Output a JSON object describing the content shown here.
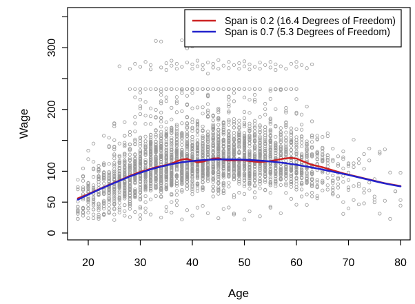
{
  "figure": {
    "background_color": "#ffffff",
    "axis_color": "#000000"
  },
  "chart_data": {
    "type": "scatter",
    "title": "",
    "xlabel": "Age",
    "ylabel": "Wage",
    "xlim": [
      16,
      82
    ],
    "ylim": [
      -12,
      365
    ],
    "grid": false,
    "x_ticks": [
      20,
      30,
      40,
      50,
      60,
      70,
      80
    ],
    "y_ticks": [
      0,
      50,
      100,
      150,
      200,
      250,
      300,
      350
    ],
    "y_tick_labels_shown": [
      "0",
      "50",
      "100",
      "200",
      "300"
    ],
    "legend": {
      "position": "topright",
      "entries": [
        {
          "label": "Span is 0.2  (16.4 Degrees of Freedom)",
          "color": "#CC2222"
        },
        {
          "label": "Span is 0.7  (5.3 Degrees of Freedom)",
          "color": "#2222CC"
        }
      ]
    },
    "series": [
      {
        "name": "loess span 0.2",
        "type": "line",
        "color": "#CC2222",
        "width": 2.5,
        "points": [
          [
            18,
            56
          ],
          [
            20,
            63
          ],
          [
            22,
            70.5
          ],
          [
            24,
            78
          ],
          [
            26,
            85
          ],
          [
            28,
            92.5
          ],
          [
            30,
            99
          ],
          [
            31,
            101.5
          ],
          [
            32,
            104
          ],
          [
            33,
            106.5
          ],
          [
            34,
            108.5
          ],
          [
            35,
            110
          ],
          [
            36,
            112.5
          ],
          [
            37,
            116
          ],
          [
            38,
            119
          ],
          [
            39,
            120
          ],
          [
            40,
            117
          ],
          [
            41,
            114.5
          ],
          [
            42,
            115.5
          ],
          [
            43,
            118
          ],
          [
            44,
            120.5
          ],
          [
            45,
            121
          ],
          [
            46,
            118.5
          ],
          [
            47,
            117.5
          ],
          [
            48,
            117.5
          ],
          [
            49,
            118
          ],
          [
            50,
            117.5
          ],
          [
            51,
            116.5
          ],
          [
            52,
            115.5
          ],
          [
            53,
            115
          ],
          [
            54,
            115.5
          ],
          [
            55,
            116.5
          ],
          [
            56,
            118
          ],
          [
            57,
            119.5
          ],
          [
            58,
            121
          ],
          [
            59,
            121.5
          ],
          [
            60,
            120.5
          ],
          [
            61,
            117
          ],
          [
            62,
            113.5
          ],
          [
            63,
            110.5
          ],
          [
            64,
            108.5
          ],
          [
            65,
            106.5
          ],
          [
            66,
            104
          ],
          [
            67,
            101.5
          ],
          [
            68,
            99
          ],
          [
            69,
            96.5
          ],
          [
            70,
            94.5
          ],
          [
            71,
            92.5
          ],
          [
            72,
            90.5
          ],
          [
            73,
            88.5
          ],
          [
            74,
            86.5
          ],
          [
            75,
            84.5
          ],
          [
            76,
            82.5
          ],
          [
            77,
            80.5
          ],
          [
            78,
            79
          ],
          [
            79,
            77.5
          ],
          [
            80,
            76
          ]
        ]
      },
      {
        "name": "loess span 0.7",
        "type": "line",
        "color": "#2222CC",
        "width": 2.5,
        "points": [
          [
            18,
            54
          ],
          [
            20,
            62
          ],
          [
            22,
            70
          ],
          [
            24,
            77.5
          ],
          [
            26,
            84.5
          ],
          [
            28,
            91.5
          ],
          [
            30,
            97.5
          ],
          [
            32,
            103
          ],
          [
            34,
            107.5
          ],
          [
            36,
            111.5
          ],
          [
            38,
            114.5
          ],
          [
            40,
            116.5
          ],
          [
            42,
            118
          ],
          [
            44,
            119
          ],
          [
            46,
            119.3
          ],
          [
            48,
            119.2
          ],
          [
            50,
            118.7
          ],
          [
            52,
            117.8
          ],
          [
            54,
            116.6
          ],
          [
            56,
            115
          ],
          [
            58,
            113
          ],
          [
            60,
            110.5
          ],
          [
            62,
            107.5
          ],
          [
            64,
            104.5
          ],
          [
            66,
            101
          ],
          [
            68,
            97.5
          ],
          [
            70,
            94
          ],
          [
            72,
            90
          ],
          [
            74,
            86
          ],
          [
            76,
            82
          ],
          [
            78,
            78.5
          ],
          [
            80,
            75.5
          ]
        ]
      }
    ],
    "scatter": {
      "style": {
        "shape": "open-circle",
        "radius": 2.2,
        "stroke": "#9B9B9B",
        "stroke_width": 0.85
      },
      "seed": 1337,
      "columns": {
        "ages": [
          18,
          19,
          20,
          21,
          22,
          23,
          24,
          25,
          26,
          27,
          28,
          29,
          30,
          31,
          32,
          33,
          34,
          35,
          36,
          37,
          38,
          39,
          40,
          41,
          42,
          43,
          44,
          45,
          46,
          47,
          48,
          49,
          50,
          51,
          52,
          53,
          54,
          55,
          56,
          57,
          58,
          59,
          60,
          61,
          62,
          63,
          64,
          65,
          66,
          67,
          68,
          69,
          70,
          71,
          72,
          73,
          74,
          75,
          76,
          77,
          78,
          79,
          80
        ],
        "counts": [
          10,
          16,
          20,
          22,
          28,
          33,
          40,
          48,
          52,
          58,
          62,
          64,
          68,
          72,
          74,
          78,
          80,
          84,
          84,
          82,
          86,
          82,
          88,
          82,
          86,
          82,
          84,
          84,
          80,
          80,
          76,
          72,
          72,
          68,
          66,
          62,
          62,
          60,
          56,
          52,
          50,
          46,
          46,
          40,
          36,
          28,
          22,
          18,
          13,
          11,
          9,
          7,
          7,
          5,
          5,
          4,
          4,
          3,
          3,
          2,
          2,
          2,
          3
        ]
      },
      "high_outliers": [
        [
          26,
          270
        ],
        [
          28,
          266
        ],
        [
          29,
          274
        ],
        [
          30,
          269
        ],
        [
          31,
          277
        ],
        [
          32,
          265
        ],
        [
          32,
          272
        ],
        [
          33,
          311
        ],
        [
          34,
          310
        ],
        [
          34,
          268
        ],
        [
          35,
          275
        ],
        [
          35,
          264
        ],
        [
          36,
          271
        ],
        [
          36,
          279
        ],
        [
          37,
          266
        ],
        [
          37,
          274
        ],
        [
          38,
          312
        ],
        [
          38,
          269
        ],
        [
          39,
          299
        ],
        [
          39,
          276
        ],
        [
          40,
          302
        ],
        [
          40,
          266
        ],
        [
          40,
          273
        ],
        [
          41,
          270
        ],
        [
          41,
          279
        ],
        [
          42,
          265
        ],
        [
          42,
          272
        ],
        [
          43,
          258
        ],
        [
          43,
          276
        ],
        [
          44,
          268
        ],
        [
          44,
          274
        ],
        [
          45,
          266
        ],
        [
          45,
          280
        ],
        [
          46,
          271
        ],
        [
          47,
          310
        ],
        [
          47,
          267
        ],
        [
          47,
          277
        ],
        [
          48,
          272
        ],
        [
          49,
          266
        ],
        [
          49,
          275
        ],
        [
          50,
          270
        ],
        [
          50,
          278
        ],
        [
          51,
          265
        ],
        [
          51,
          273
        ],
        [
          52,
          269
        ],
        [
          53,
          276
        ],
        [
          53,
          266
        ],
        [
          54,
          272
        ],
        [
          55,
          268
        ],
        [
          55,
          277
        ],
        [
          56,
          264
        ],
        [
          56,
          273
        ],
        [
          57,
          270
        ],
        [
          58,
          310
        ],
        [
          58,
          266
        ],
        [
          59,
          274
        ],
        [
          60,
          269
        ],
        [
          60,
          277
        ],
        [
          61,
          272
        ],
        [
          62,
          267
        ],
        [
          63,
          273
        ]
      ],
      "low_outliers": [
        [
          18,
          36
        ],
        [
          18,
          31
        ],
        [
          18,
          23
        ],
        [
          19,
          34
        ],
        [
          19,
          28
        ],
        [
          20,
          40
        ],
        [
          20,
          33
        ],
        [
          20,
          24
        ],
        [
          21,
          30
        ],
        [
          22,
          37
        ],
        [
          22,
          26
        ],
        [
          23,
          43
        ],
        [
          24,
          32
        ],
        [
          25,
          21
        ],
        [
          26,
          38
        ],
        [
          27,
          28
        ],
        [
          28,
          44
        ],
        [
          29,
          34
        ],
        [
          30,
          23
        ],
        [
          31,
          40
        ],
        [
          32,
          30
        ],
        [
          34,
          25
        ],
        [
          35,
          42
        ],
        [
          36,
          33
        ],
        [
          38,
          22
        ],
        [
          39,
          37
        ],
        [
          40,
          28
        ],
        [
          42,
          44
        ],
        [
          43,
          32
        ],
        [
          45,
          24
        ],
        [
          46,
          39
        ],
        [
          48,
          30
        ],
        [
          50,
          22
        ],
        [
          51,
          35
        ],
        [
          53,
          27
        ],
        [
          55,
          41
        ],
        [
          57,
          32
        ],
        [
          69,
          50
        ],
        [
          70,
          40
        ],
        [
          73,
          48
        ],
        [
          75,
          54
        ]
      ]
    }
  }
}
